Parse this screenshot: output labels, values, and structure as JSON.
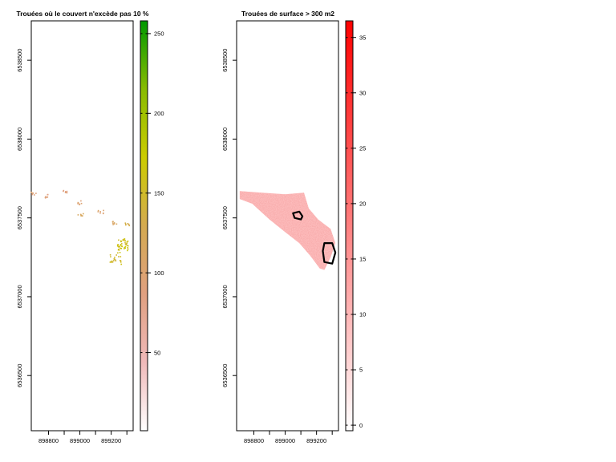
{
  "chart_data": [
    {
      "type": "heatmap",
      "title": "Trouées où le couvert n'excède pas 10 %",
      "x_ticks": [
        898800,
        899000,
        899200
      ],
      "y_ticks": [
        6536500,
        6537000,
        6537500,
        6538000,
        6538500
      ],
      "colorbar": {
        "ticks": [
          50,
          100,
          150,
          200,
          250
        ],
        "range": [
          1,
          258
        ],
        "colors": [
          "#ffffff",
          "#f0b9b9",
          "#e0a080",
          "#d4aa50",
          "#cccc00",
          "#88bb00",
          "#009900"
        ]
      },
      "clusters": [
        {
          "x": 898700,
          "y": 6537660,
          "value": 95
        },
        {
          "x": 898780,
          "y": 6537640,
          "value": 90
        },
        {
          "x": 898900,
          "y": 6537670,
          "value": 85
        },
        {
          "x": 899000,
          "y": 6537600,
          "value": 100
        },
        {
          "x": 899000,
          "y": 6537520,
          "value": 115
        },
        {
          "x": 899130,
          "y": 6537540,
          "value": 100
        },
        {
          "x": 899220,
          "y": 6537470,
          "value": 110
        },
        {
          "x": 899300,
          "y": 6537460,
          "value": 130
        },
        {
          "x": 899270,
          "y": 6537310,
          "value": 160
        },
        {
          "x": 899225,
          "y": 6537240,
          "value": 150
        },
        {
          "x": 899270,
          "y": 6537340,
          "value": 155
        }
      ]
    },
    {
      "type": "heatmap",
      "title": "Trouées de surface > 300 m2",
      "x_ticks": [
        898800,
        899000,
        899200
      ],
      "y_ticks": [
        6536500,
        6537000,
        6537500,
        6538000,
        6538500
      ],
      "colorbar": {
        "ticks": [
          0,
          5,
          10,
          15,
          20,
          25,
          30,
          35
        ],
        "range": [
          -0.5,
          36.5
        ],
        "colors": [
          "#ffffff",
          "#ff0000"
        ]
      },
      "region": [
        [
          898710,
          6537670
        ],
        [
          898850,
          6537660
        ],
        [
          899000,
          6537650
        ],
        [
          899120,
          6537660
        ],
        [
          899150,
          6537560
        ],
        [
          899210,
          6537490
        ],
        [
          899290,
          6537430
        ],
        [
          899320,
          6537340
        ],
        [
          899290,
          6537250
        ],
        [
          899250,
          6537170
        ],
        [
          899220,
          6537180
        ],
        [
          899160,
          6537260
        ],
        [
          899090,
          6537340
        ],
        [
          899000,
          6537410
        ],
        [
          898900,
          6537490
        ],
        [
          898790,
          6537590
        ],
        [
          898710,
          6537620
        ]
      ],
      "outlines": [
        [
          [
            899050,
            6537530
          ],
          [
            899090,
            6537540
          ],
          [
            899110,
            6537510
          ],
          [
            899100,
            6537490
          ],
          [
            899060,
            6537500
          ]
        ],
        [
          [
            899250,
            6537340
          ],
          [
            899300,
            6537340
          ],
          [
            899320,
            6537280
          ],
          [
            899300,
            6537210
          ],
          [
            899250,
            6537220
          ],
          [
            899240,
            6537290
          ]
        ]
      ]
    }
  ]
}
